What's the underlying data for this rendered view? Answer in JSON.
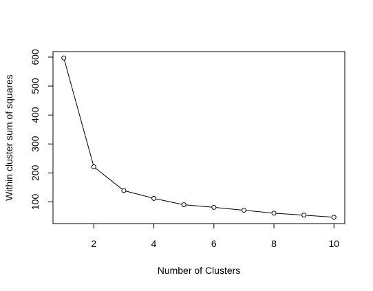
{
  "chart_data": {
    "type": "line",
    "x_label": "Number of Clusters",
    "y_label": "Within cluster sum of squares",
    "x": [
      1,
      2,
      3,
      4,
      5,
      6,
      7,
      8,
      9,
      10
    ],
    "values": [
      597,
      221,
      139,
      112,
      90,
      81,
      71,
      61,
      54,
      47
    ],
    "color": "#000000",
    "xlim": [
      0.64,
      10.36
    ],
    "xticks": [
      2,
      4,
      6,
      8,
      10
    ],
    "ylim": [
      25,
      619
    ],
    "yticks": [
      100,
      200,
      300,
      400,
      500,
      600
    ]
  }
}
